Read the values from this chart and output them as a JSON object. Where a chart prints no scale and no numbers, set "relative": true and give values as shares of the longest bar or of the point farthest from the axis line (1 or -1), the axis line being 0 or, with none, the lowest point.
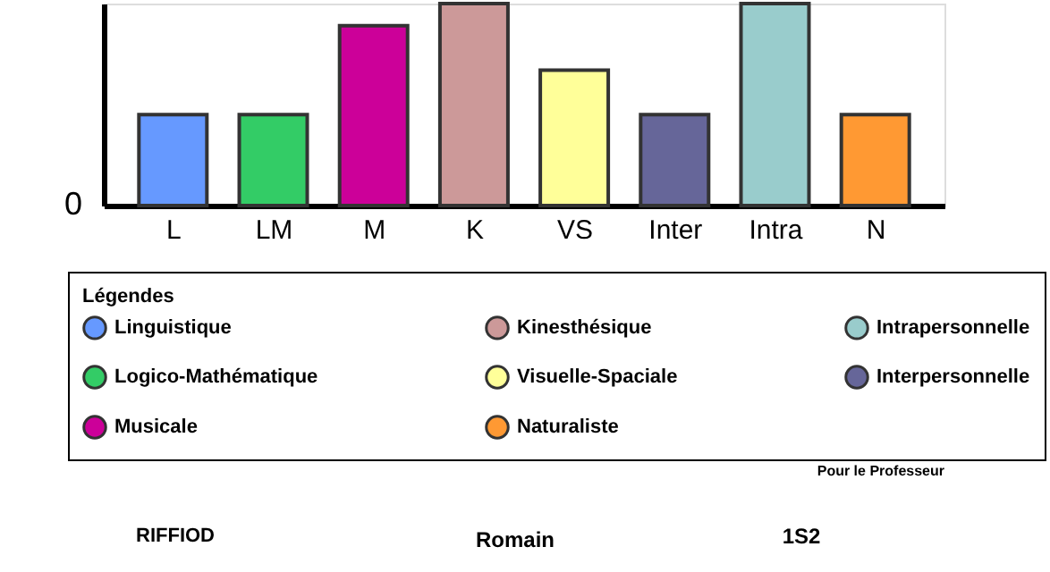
{
  "chart_data": {
    "type": "bar",
    "relative": true,
    "legend_title": "Légendes",
    "legend": "bottom",
    "categories": [
      "L",
      "LM",
      "M",
      "K",
      "VS",
      "Inter",
      "Intra",
      "N"
    ],
    "series": [
      {
        "name": "Linguistique",
        "color": "#6699ff",
        "values": [
          0.45,
          null,
          null,
          null,
          null,
          null,
          null,
          null
        ]
      },
      {
        "name": "Logico-Mathématique",
        "color": "#33cc66",
        "values": [
          null,
          0.45,
          null,
          null,
          null,
          null,
          null,
          null
        ]
      },
      {
        "name": "Musicale",
        "color": "#cc0099",
        "values": [
          null,
          null,
          0.89,
          null,
          null,
          null,
          null,
          null
        ]
      },
      {
        "name": "Kinesthésique",
        "color": "#cc9999",
        "values": [
          null,
          null,
          null,
          1,
          null,
          null,
          null,
          null
        ]
      },
      {
        "name": "Visuelle-Spaciale",
        "color": "#ffff99",
        "values": [
          null,
          null,
          null,
          null,
          0.67,
          null,
          null,
          null
        ]
      },
      {
        "name": "Naturaliste",
        "color": "#ff9933",
        "values": [
          null,
          null,
          null,
          null,
          null,
          null,
          null,
          0.45
        ]
      },
      {
        "name": "Intrapersonnelle",
        "color": "#99cccc",
        "values": [
          null,
          null,
          null,
          null,
          null,
          null,
          1,
          null
        ]
      },
      {
        "name": "Interpersonnelle",
        "color": "#666699",
        "values": [
          null,
          null,
          null,
          null,
          null,
          0.45,
          null,
          null
        ]
      }
    ],
    "annotations": [
      "0",
      "Pour le Professeur",
      "RIFFIOD",
      "Romain",
      "1S2"
    ]
  }
}
